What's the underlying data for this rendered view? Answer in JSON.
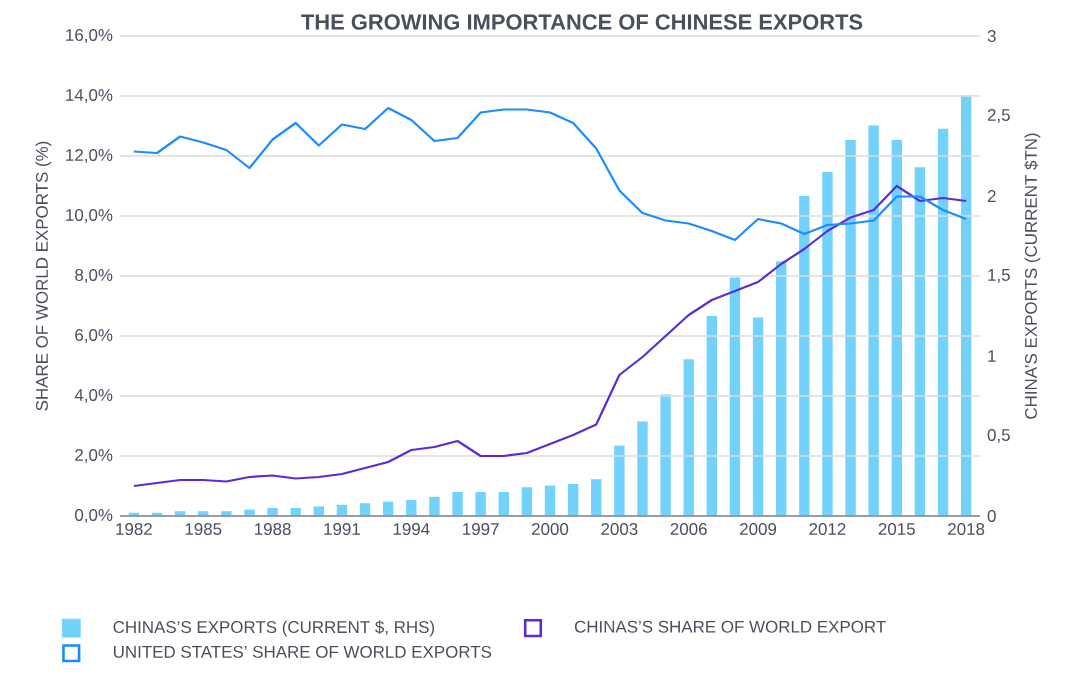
{
  "chart_data": {
    "type": "bar",
    "title": "THE GROWING IMPORTANCE OF CHINESE EXPORTS",
    "ylabel": "SHARE OF WORLD EXPORTS (%)",
    "y2label": "CHINA’S EXPORTS (CURRENT $TN)",
    "categories": [
      "1982",
      null,
      null,
      "1985",
      null,
      null,
      "1988",
      null,
      null,
      "1991",
      null,
      null,
      "1994",
      null,
      null,
      "1997",
      null,
      null,
      "2000",
      null,
      null,
      "2003",
      null,
      null,
      "2006",
      null,
      null,
      "2009",
      null,
      null,
      "2012",
      null,
      null,
      "2015",
      null,
      null,
      "2018"
    ],
    "series": [
      {
        "name": "CHINAS’S EXPORTS (CURRENT $, RHS)",
        "axis": "y2",
        "color": "#73d2fb",
        "values": [
          0.02,
          0.02,
          0.03,
          0.03,
          0.03,
          0.04,
          0.05,
          0.05,
          0.06,
          0.07,
          0.08,
          0.09,
          0.1,
          0.12,
          0.15,
          0.15,
          0.15,
          0.18,
          0.19,
          0.2,
          0.23,
          0.44,
          0.59,
          0.76,
          0.98,
          1.25,
          1.49,
          1.24,
          1.59,
          2.0,
          2.15,
          2.35,
          2.44,
          2.35,
          2.18,
          2.42,
          2.63
        ]
      },
      {
        "name": "CHINAS’S SHARE OF WORLD EXPORT",
        "type": "line",
        "color": "#5b2bd6",
        "values": [
          1.0,
          1.1,
          1.2,
          1.2,
          1.15,
          1.3,
          1.35,
          1.25,
          1.3,
          1.4,
          1.6,
          1.8,
          2.2,
          2.3,
          2.5,
          2.0,
          2.0,
          2.1,
          2.4,
          2.7,
          3.05,
          4.7,
          5.3,
          6.0,
          6.7,
          7.2,
          7.5,
          7.8,
          8.4,
          8.9,
          9.5,
          9.95,
          10.2,
          11.0,
          10.5,
          10.6,
          10.5
        ]
      },
      {
        "name": "UNITED STATES’ SHARE OF WORLD EXPORTS",
        "type": "line",
        "color": "#1a8cff",
        "values": [
          12.15,
          12.1,
          12.65,
          12.45,
          12.2,
          11.6,
          12.55,
          13.1,
          12.35,
          13.05,
          12.9,
          13.6,
          13.2,
          12.5,
          12.6,
          13.45,
          13.55,
          13.55,
          13.45,
          13.1,
          12.25,
          10.85,
          10.1,
          9.85,
          9.75,
          9.5,
          9.2,
          9.9,
          9.75,
          9.4,
          9.7,
          9.75,
          9.85,
          10.65,
          10.65,
          10.2,
          9.9
        ]
      }
    ],
    "ylim": [
      0,
      16
    ],
    "yticks": [
      {
        "value": 0,
        "label": "0,0%"
      },
      {
        "value": 2,
        "label": "2,0%"
      },
      {
        "value": 4,
        "label": "4,0%"
      },
      {
        "value": 6,
        "label": "6,0%"
      },
      {
        "value": 8,
        "label": "8,0%"
      },
      {
        "value": 10,
        "label": "10,0%"
      },
      {
        "value": 12,
        "label": "12,0%"
      },
      {
        "value": 14,
        "label": "14,0%"
      },
      {
        "value": 16,
        "label": "16,0%"
      }
    ],
    "y2lim": [
      0,
      3
    ],
    "y2ticks": [
      0,
      {
        "value": 0.5,
        "label": "0,5"
      },
      1,
      {
        "value": 1.5,
        "label": "1,5"
      },
      2,
      {
        "value": 2.5,
        "label": "2,5"
      },
      3
    ],
    "grid": "y",
    "legend": "bottom"
  }
}
